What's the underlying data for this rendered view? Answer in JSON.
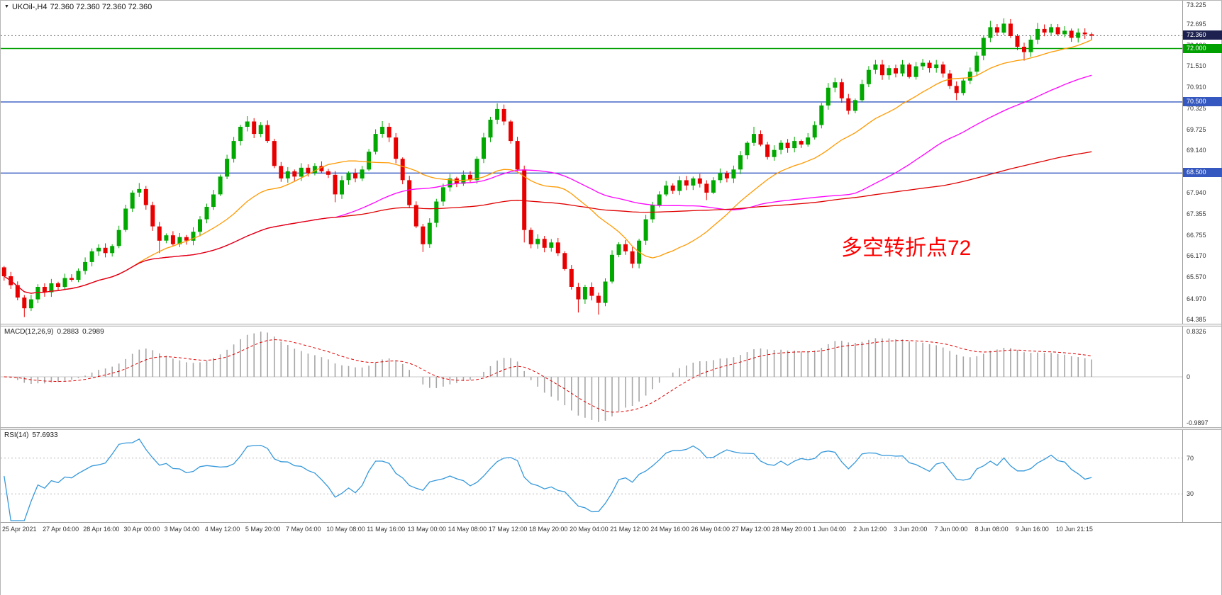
{
  "header": {
    "title": "UKOil-,H4",
    "ohlc": "72.360 72.360 72.360 72.360"
  },
  "main_panel": {
    "y_ticks": [
      "73.225",
      "72.695",
      "72.100",
      "71.510",
      "70.910",
      "70.325",
      "69.725",
      "69.140",
      "68.545",
      "67.940",
      "67.355",
      "66.755",
      "66.170",
      "65.570",
      "64.970",
      "64.385"
    ],
    "current_price": {
      "value": "72.360",
      "badge_color": "#1c2150"
    },
    "hlines": [
      {
        "price": 72.0,
        "label": "72.000",
        "color": "#00a000"
      },
      {
        "price": 70.5,
        "label": "70.500",
        "color": "#3458c0"
      },
      {
        "price": 68.5,
        "label": "68.500",
        "color": "#3458c0"
      }
    ],
    "annotation": {
      "text": "多空转折点72",
      "color": "#ff0000"
    }
  },
  "macd_panel": {
    "label": "MACD(12,26,9)",
    "value_main": "0.2883",
    "value_signal": "0.2989",
    "params": [
      12,
      26,
      9
    ],
    "y_ticks": {
      "top": "0.8326",
      "zero": "0",
      "bottom": "-0.9897"
    },
    "hist_color": "#a6a6a6",
    "signal_color": "#e00000"
  },
  "rsi_panel": {
    "label": "RSI(14)",
    "value": "57.6933",
    "period": 14,
    "levels": [
      "70",
      "30"
    ],
    "line_color": "#3598db"
  },
  "chart_data": {
    "type": "candlestick",
    "title": "UKOil-,H4",
    "timeframe": "H4",
    "ylim": [
      64.385,
      73.225
    ],
    "label_every": 6,
    "x_labels": [
      "25 Apr 2021",
      "27 Apr 04:00",
      "28 Apr 16:00",
      "30 Apr 00:00",
      "3 May 04:00",
      "4 May 12:00",
      "5 May 20:00",
      "7 May 04:00",
      "10 May 08:00",
      "11 May 16:00",
      "13 May 00:00",
      "14 May 08:00",
      "17 May 12:00",
      "18 May 20:00",
      "20 May 04:00",
      "21 May 12:00",
      "24 May 16:00",
      "26 May 04:00",
      "27 May 12:00",
      "28 May 20:00",
      "1 Jun 04:00",
      "2 Jun 12:00",
      "3 Jun 20:00",
      "7 Jun 00:00",
      "8 Jun 08:00",
      "9 Jun 16:00",
      "10 Jun 21:15"
    ],
    "open_first": 65.85,
    "closes": [
      65.6,
      65.35,
      65.0,
      64.7,
      64.95,
      65.3,
      65.15,
      65.4,
      65.3,
      65.55,
      65.5,
      65.75,
      66.0,
      66.3,
      66.4,
      66.25,
      66.45,
      66.9,
      67.5,
      67.95,
      68.05,
      67.6,
      67.0,
      66.6,
      66.75,
      66.5,
      66.7,
      66.6,
      66.85,
      67.2,
      67.55,
      67.9,
      68.4,
      68.9,
      69.4,
      69.8,
      69.95,
      69.6,
      69.85,
      69.4,
      68.7,
      68.35,
      68.55,
      68.4,
      68.65,
      68.5,
      68.7,
      68.55,
      68.45,
      67.9,
      68.3,
      68.5,
      68.35,
      68.6,
      69.1,
      69.6,
      69.8,
      69.5,
      68.9,
      68.3,
      67.6,
      67.0,
      66.5,
      67.1,
      67.7,
      68.1,
      68.35,
      68.2,
      68.45,
      68.3,
      68.9,
      69.5,
      70.0,
      70.3,
      69.95,
      69.4,
      68.6,
      66.9,
      66.5,
      66.65,
      66.4,
      66.55,
      66.25,
      65.8,
      65.3,
      64.95,
      65.3,
      65.05,
      64.85,
      65.45,
      66.2,
      66.5,
      66.3,
      65.95,
      66.6,
      67.2,
      67.6,
      67.9,
      68.15,
      68.0,
      68.3,
      68.15,
      68.35,
      68.2,
      67.95,
      68.3,
      68.5,
      68.35,
      68.6,
      69.0,
      69.35,
      69.6,
      69.3,
      68.95,
      69.15,
      69.35,
      69.2,
      69.4,
      69.3,
      69.5,
      69.85,
      70.4,
      70.9,
      71.05,
      70.6,
      70.25,
      70.55,
      71.0,
      71.4,
      71.55,
      71.25,
      71.45,
      71.3,
      71.55,
      71.2,
      71.5,
      71.6,
      71.45,
      71.55,
      71.3,
      70.95,
      70.75,
      71.1,
      71.35,
      71.8,
      72.3,
      72.6,
      72.45,
      72.7,
      72.35,
      72.05,
      71.9,
      72.25,
      72.55,
      72.45,
      72.6,
      72.4,
      72.5,
      72.3,
      72.45,
      72.4,
      72.36
    ],
    "wick_overrides": {
      "3": {
        "low": 64.45
      },
      "20": {
        "high": 68.22
      },
      "23": {
        "low": 66.25
      },
      "36": {
        "high": 70.1
      },
      "49": {
        "low": 67.68
      },
      "56": {
        "high": 69.96
      },
      "62": {
        "low": 66.28
      },
      "73": {
        "high": 70.46
      },
      "77": {
        "low": 66.55
      },
      "85": {
        "low": 64.58
      },
      "88": {
        "low": 64.52
      },
      "104": {
        "low": 67.74
      },
      "111": {
        "high": 69.8
      },
      "123": {
        "high": 71.18
      },
      "129": {
        "high": 71.68
      },
      "141": {
        "low": 70.55
      },
      "146": {
        "high": 72.78
      },
      "148": {
        "high": 72.85
      },
      "151": {
        "low": 71.66
      },
      "153": {
        "high": 72.72
      }
    },
    "up_color": "#00a800",
    "down_color": "#e80000",
    "ma": [
      {
        "period": 20,
        "color": "#ff9900"
      },
      {
        "period": 50,
        "color": "#ff00ff"
      },
      {
        "period": 140,
        "color": "#e00000"
      }
    ]
  }
}
